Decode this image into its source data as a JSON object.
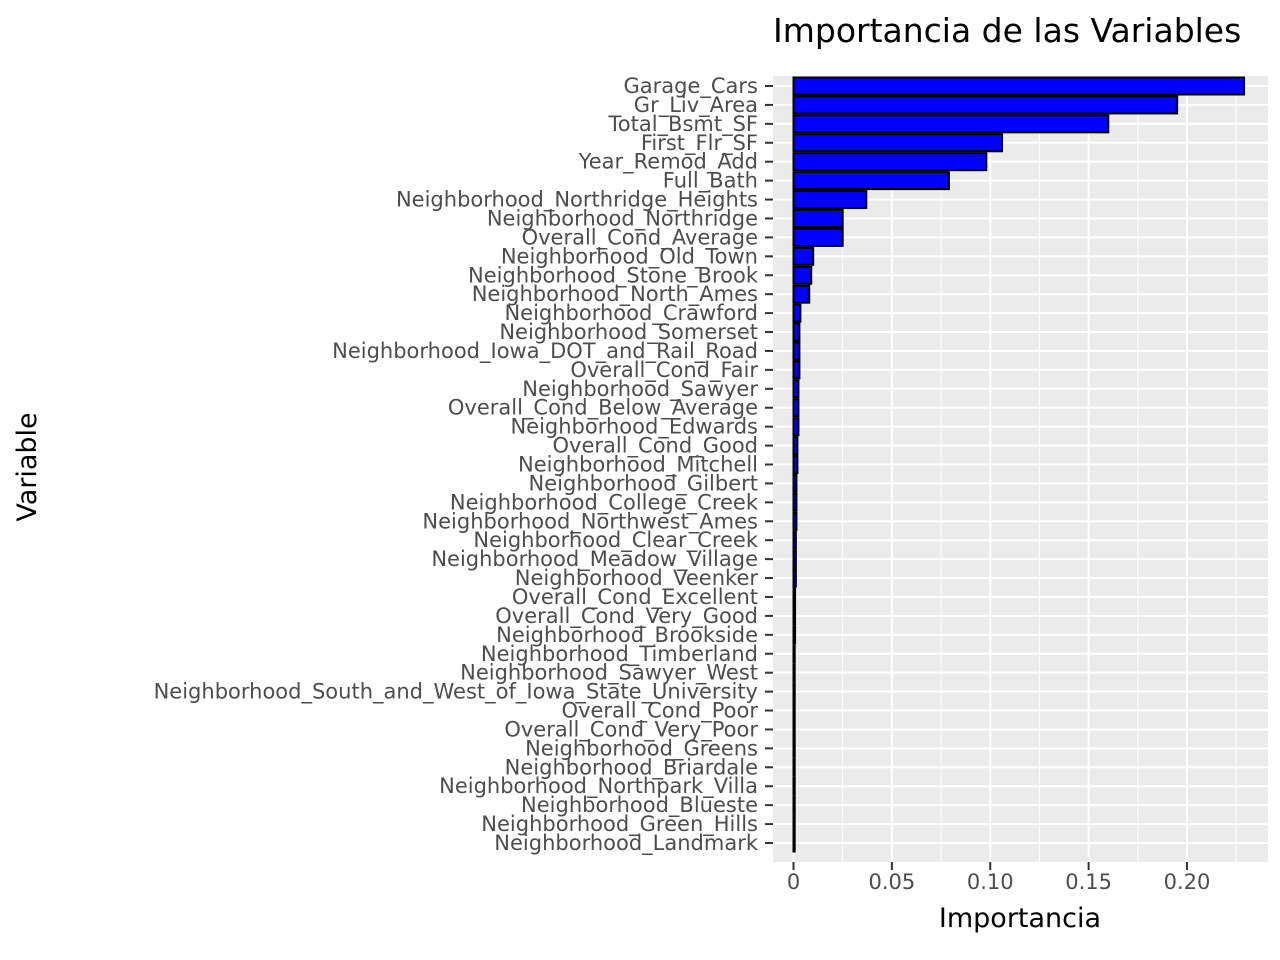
{
  "chart_data": {
    "type": "bar",
    "orientation": "horizontal",
    "title": "Importancia de las Variables",
    "xlabel": "Importancia",
    "ylabel": "Variable",
    "xlim": [
      0,
      0.24
    ],
    "xticks": [
      0,
      0.05,
      0.1,
      0.15,
      0.2
    ],
    "xtick_labels": [
      "0",
      "0.05",
      "0.10",
      "0.15",
      "0.20"
    ],
    "grid": true,
    "bar_color": "#0000ff",
    "bar_edge_color": "#000000",
    "panel_background": "#ebebeb",
    "grid_color": "#ffffff",
    "categories": [
      "Garage_Cars",
      "Gr_Liv_Area",
      "Total_Bsmt_SF",
      "First_Flr_SF",
      "Year_Remod_Add",
      "Full_Bath",
      "Neighborhood_Northridge_Heights",
      "Neighborhood_Northridge",
      "Overall_Cond_Average",
      "Neighborhood_Old_Town",
      "Neighborhood_Stone_Brook",
      "Neighborhood_North_Ames",
      "Neighborhood_Crawford",
      "Neighborhood_Somerset",
      "Neighborhood_Iowa_DOT_and_Rail_Road",
      "Overall_Cond_Fair",
      "Neighborhood_Sawyer",
      "Overall_Cond_Below_Average",
      "Neighborhood_Edwards",
      "Overall_Cond_Good",
      "Neighborhood_Mitchell",
      "Neighborhood_Gilbert",
      "Neighborhood_College_Creek",
      "Neighborhood_Northwest_Ames",
      "Neighborhood_Clear_Creek",
      "Neighborhood_Meadow_Village",
      "Neighborhood_Veenker",
      "Overall_Cond_Excellent",
      "Overall_Cond_Very_Good",
      "Neighborhood_Brookside",
      "Neighborhood_Timberland",
      "Neighborhood_Sawyer_West",
      "Neighborhood_South_and_West_of_Iowa_State_University",
      "Overall_Cond_Poor",
      "Overall_Cond_Very_Poor",
      "Neighborhood_Greens",
      "Neighborhood_Briardale",
      "Neighborhood_Northpark_Villa",
      "Neighborhood_Blueste",
      "Neighborhood_Green_Hills",
      "Neighborhood_Landmark"
    ],
    "values": [
      0.229,
      0.195,
      0.16,
      0.106,
      0.098,
      0.079,
      0.037,
      0.025,
      0.025,
      0.01,
      0.009,
      0.008,
      0.0035,
      0.003,
      0.003,
      0.003,
      0.0025,
      0.0025,
      0.0025,
      0.002,
      0.002,
      0.0015,
      0.0015,
      0.0015,
      0.0012,
      0.0012,
      0.0012,
      0.0008,
      0.0008,
      0.0008,
      0.0006,
      0.0006,
      0.0006,
      0.0005,
      0.0005,
      0.0004,
      0.0004,
      0.0003,
      0.0002,
      0.0001,
      0.0001
    ]
  }
}
